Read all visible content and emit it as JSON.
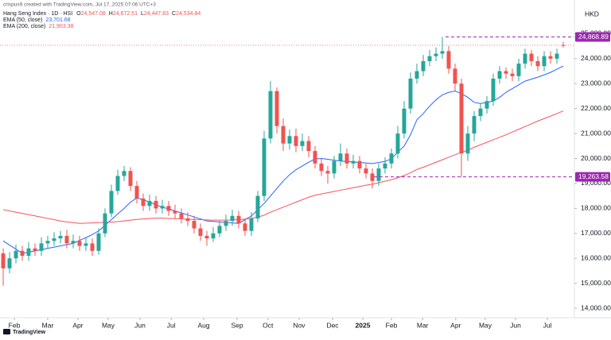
{
  "chart_data": {
    "type": "candlestick",
    "subtitle": "crispus9 created with TradingView.com, Jul 17, 2025 07:06 UTC+3",
    "symbol": "Hang Seng Index · 1D · HSI",
    "ohlc_labels": [
      {
        "key": "O",
        "label": "24,547.08"
      },
      {
        "key": "H",
        "label": "24,672.51"
      },
      {
        "key": "L",
        "label": "24,447.83"
      },
      {
        "key": "C",
        "label": "24,534.84"
      }
    ],
    "currency": "HKD",
    "footer": "TradingView",
    "up_color": "#26a69a",
    "down_color": "#ef5350",
    "open": [
      16200,
      15600,
      16000,
      16300,
      16100,
      16400,
      16300,
      16600,
      16700,
      16800,
      16900,
      16600,
      16700,
      16500,
      16600,
      16300,
      17000,
      17800,
      18700,
      19300,
      19500,
      18900,
      18400,
      18100,
      18300,
      18000,
      18100,
      17900,
      17800,
      17600,
      17500,
      17200,
      16900,
      16800,
      17000,
      17300,
      17500,
      17700,
      17400,
      17100,
      17600,
      18500,
      20800,
      22700,
      21300,
      20600,
      20900,
      20500,
      20700,
      20300,
      19800,
      19500,
      19400,
      19900,
      20200,
      19800,
      19900,
      19600,
      19400,
      19100,
      19600,
      19800,
      20200,
      21000,
      22000,
      23200,
      23500,
      23900,
      24100,
      24200,
      24300,
      23600,
      23000,
      20200,
      21000,
      21700,
      22000,
      22300,
      23200,
      23500,
      23400,
      23300,
      23800,
      24200,
      23900,
      23700,
      24100,
      24000,
      24547.08
    ],
    "high": [
      16400,
      16250,
      16550,
      16500,
      16650,
      16600,
      16850,
      16900,
      17050,
      17100,
      17150,
      16950,
      16900,
      16850,
      16800,
      17200,
      18000,
      18950,
      19550,
      19700,
      19650,
      19100,
      18600,
      18550,
      18500,
      18350,
      18300,
      18150,
      18000,
      17850,
      17700,
      17400,
      17100,
      17250,
      17500,
      17750,
      17950,
      17900,
      17600,
      17850,
      18700,
      21100,
      23100,
      22850,
      21600,
      21150,
      21200,
      21000,
      20900,
      20500,
      20000,
      19700,
      20100,
      20600,
      20400,
      20150,
      20100,
      19800,
      19600,
      19800,
      20050,
      20400,
      21300,
      22300,
      23450,
      23800,
      24150,
      24350,
      24450,
      24868.89,
      24500,
      23800,
      23200,
      21300,
      21900,
      22200,
      22500,
      23400,
      23700,
      23650,
      23600,
      24000,
      24400,
      24350,
      24100,
      24300,
      24300,
      24400,
      24672.51
    ],
    "low": [
      14900,
      15400,
      15800,
      15900,
      15900,
      16100,
      16100,
      16400,
      16500,
      16600,
      16400,
      16400,
      16300,
      16300,
      16100,
      16150,
      16850,
      17650,
      18550,
      19100,
      18700,
      18200,
      17900,
      17900,
      17800,
      17800,
      17700,
      17600,
      17400,
      17300,
      17000,
      16700,
      16500,
      16650,
      16850,
      17100,
      17300,
      17200,
      16900,
      16900,
      17450,
      18300,
      20600,
      21000,
      20300,
      20350,
      20250,
      20300,
      20050,
      19600,
      19300,
      19000,
      19200,
      19700,
      19600,
      19600,
      19400,
      19200,
      18800,
      18900,
      19400,
      19600,
      20000,
      20800,
      21800,
      23000,
      23300,
      23700,
      23900,
      24000,
      23400,
      22700,
      19263.58,
      19900,
      20700,
      21500,
      21800,
      22100,
      23000,
      23200,
      23100,
      23100,
      23600,
      23700,
      23500,
      23500,
      23800,
      23800,
      24447.83
    ],
    "close": [
      15600,
      16000,
      16300,
      16100,
      16400,
      16300,
      16600,
      16700,
      16800,
      16900,
      16600,
      16700,
      16500,
      16600,
      16300,
      17000,
      17800,
      18700,
      19300,
      19500,
      18900,
      18400,
      18100,
      18300,
      18000,
      18100,
      17900,
      17800,
      17600,
      17500,
      17200,
      16900,
      16800,
      17000,
      17300,
      17500,
      17700,
      17400,
      17100,
      17600,
      18500,
      20800,
      22700,
      21300,
      20600,
      20900,
      20500,
      20700,
      20300,
      19800,
      19500,
      19400,
      19900,
      20200,
      19800,
      19900,
      19600,
      19400,
      19100,
      19600,
      19800,
      20200,
      21000,
      22000,
      23200,
      23500,
      23900,
      24100,
      24200,
      24300,
      23600,
      23000,
      20200,
      21000,
      21700,
      22000,
      22300,
      23200,
      23500,
      23400,
      23300,
      23800,
      24200,
      23900,
      23700,
      24100,
      24000,
      24200,
      24534.84
    ],
    "series": [
      {
        "name": "EMA (50, close)",
        "color": "#2962ff",
        "value_label": "23,701.68",
        "values": [
          16700,
          16530,
          16370,
          16200,
          16250,
          16300,
          16350,
          16400,
          16450,
          16500,
          16550,
          16600,
          16720,
          16830,
          16950,
          17100,
          17320,
          17550,
          17780,
          18000,
          18250,
          18420,
          18350,
          18250,
          18150,
          18050,
          17980,
          17900,
          17820,
          17740,
          17660,
          17580,
          17500,
          17480,
          17460,
          17440,
          17420,
          17400,
          17550,
          17700,
          17950,
          18200,
          18500,
          18800,
          19100,
          19350,
          19550,
          19700,
          19850,
          19980,
          20000,
          19970,
          19930,
          19900,
          19880,
          19860,
          19840,
          19820,
          19800,
          19840,
          19880,
          19990,
          20250,
          20500,
          20950,
          21550,
          21800,
          22100,
          22350,
          22550,
          22650,
          22700,
          22600,
          22450,
          22250,
          22200,
          22250,
          22300,
          22450,
          22650,
          22800,
          22950,
          23100,
          23180,
          23260,
          23350,
          23450,
          23580,
          23701.68
        ]
      },
      {
        "name": "EMA (200, close)",
        "color": "#f7525f",
        "value_label": "21,903.38",
        "values": [
          17950,
          17900,
          17850,
          17800,
          17750,
          17700,
          17650,
          17600,
          17550,
          17500,
          17460,
          17430,
          17400,
          17410,
          17420,
          17430,
          17440,
          17450,
          17470,
          17500,
          17530,
          17560,
          17580,
          17600,
          17610,
          17610,
          17600,
          17590,
          17580,
          17570,
          17560,
          17550,
          17540,
          17530,
          17530,
          17530,
          17540,
          17550,
          17570,
          17600,
          17650,
          17730,
          17850,
          17950,
          18050,
          18150,
          18250,
          18350,
          18450,
          18530,
          18580,
          18630,
          18680,
          18730,
          18780,
          18830,
          18880,
          18930,
          18970,
          19030,
          19090,
          19150,
          19230,
          19320,
          19430,
          19560,
          19650,
          19750,
          19850,
          19950,
          20050,
          20150,
          20250,
          20330,
          20450,
          20550,
          20650,
          20750,
          20850,
          20950,
          21060,
          21170,
          21280,
          21390,
          21500,
          21600,
          21700,
          21800,
          21903.38
        ]
      }
    ],
    "levels": [
      {
        "value": 24868.89,
        "label": "24,868.89"
      },
      {
        "value": 19263.58,
        "label": "19,263.58"
      }
    ],
    "level_color": "#9c27b0",
    "ylim": [
      13620,
      26350
    ],
    "yticks": [
      {
        "value": 14000,
        "label": "14,000.00"
      },
      {
        "value": 15000,
        "label": "15,000.00"
      },
      {
        "value": 16000,
        "label": "16,000.00"
      },
      {
        "value": 17000,
        "label": "17,000.00"
      },
      {
        "value": 18000,
        "label": "18,000.00"
      },
      {
        "value": 19000,
        "label": "19,000.00"
      },
      {
        "value": 20000,
        "label": "20,000.00"
      },
      {
        "value": 21000,
        "label": "21,000.00"
      },
      {
        "value": 22000,
        "label": "22,000.00"
      },
      {
        "value": 23000,
        "label": "23,000.00"
      },
      {
        "value": 24000,
        "label": "24,000.00"
      },
      {
        "value": 25000,
        "label": "25,000.00"
      }
    ],
    "xlim": [
      -0.5,
      89.75
    ],
    "xticks": [
      {
        "value": 1.75,
        "label": "Feb"
      },
      {
        "value": 7,
        "label": "Mar"
      },
      {
        "value": 11.75,
        "label": "Apr"
      },
      {
        "value": 16.5,
        "label": "May"
      },
      {
        "value": 21.5,
        "label": "Jun"
      },
      {
        "value": 26.4,
        "label": "Jul"
      },
      {
        "value": 31.5,
        "label": "Aug"
      },
      {
        "value": 36.75,
        "label": "Sep"
      },
      {
        "value": 41.6,
        "label": "Oct"
      },
      {
        "value": 46.5,
        "label": "Nov"
      },
      {
        "value": 51.75,
        "label": "Dec"
      },
      {
        "value": 56.5,
        "label": "2025"
      },
      {
        "value": 61,
        "label": "Feb"
      },
      {
        "value": 65.9,
        "label": "Mar"
      },
      {
        "value": 71.1,
        "label": "Apr"
      },
      {
        "value": 75.75,
        "label": "May"
      },
      {
        "value": 80.5,
        "label": "Jun"
      },
      {
        "value": 85.5,
        "label": "Jul"
      }
    ],
    "grid": false
  }
}
